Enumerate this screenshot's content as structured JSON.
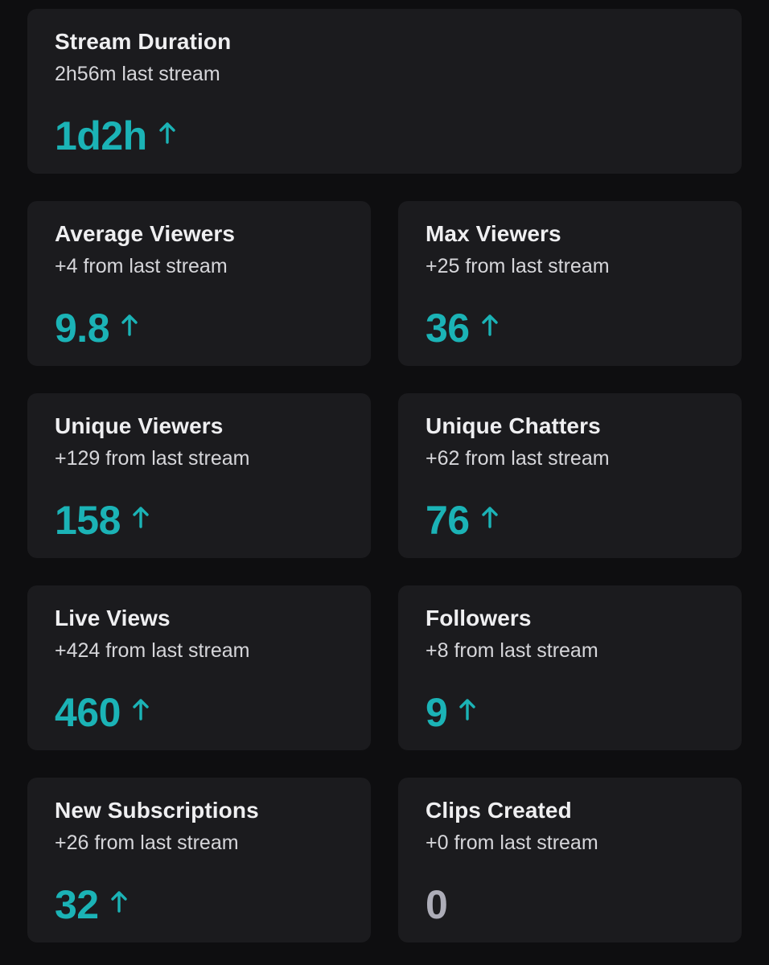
{
  "colors": {
    "background": "#0e0e10",
    "card": "#1b1b1e",
    "accent": "#1bb3b6",
    "neutral": "#adadb8"
  },
  "cards": [
    {
      "title": "Stream Duration",
      "subtitle": "2h56m last stream",
      "value": "1d2h",
      "trend": "up"
    },
    {
      "title": "Average Viewers",
      "subtitle": "+4 from last stream",
      "value": "9.8",
      "trend": "up"
    },
    {
      "title": "Max Viewers",
      "subtitle": "+25 from last stream",
      "value": "36",
      "trend": "up"
    },
    {
      "title": "Unique Viewers",
      "subtitle": "+129 from last stream",
      "value": "158",
      "trend": "up"
    },
    {
      "title": "Unique Chatters",
      "subtitle": "+62 from last stream",
      "value": "76",
      "trend": "up"
    },
    {
      "title": "Live Views",
      "subtitle": "+424 from last stream",
      "value": "460",
      "trend": "up"
    },
    {
      "title": "Followers",
      "subtitle": "+8 from last stream",
      "value": "9",
      "trend": "up"
    },
    {
      "title": "New Subscriptions",
      "subtitle": "+26 from last stream",
      "value": "32",
      "trend": "up"
    },
    {
      "title": "Clips Created",
      "subtitle": "+0 from last stream",
      "value": "0",
      "trend": "none"
    }
  ]
}
